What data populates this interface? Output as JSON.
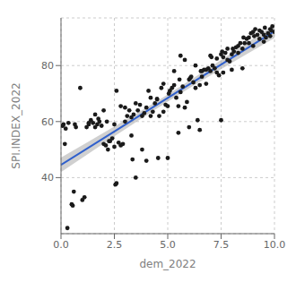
{
  "chart_data": {
    "type": "scatter",
    "xlabel": "dem_2022",
    "ylabel": "SPI.INDEX_2022",
    "color": "#1A1A1A",
    "x": [
      0.08,
      0.12,
      0.18,
      0.22,
      0.35,
      0.5,
      0.55,
      0.6,
      0.65,
      1.0,
      1.1,
      1.2,
      1.3,
      1.5,
      1.6,
      1.7,
      1.8,
      1.9,
      2.0,
      2.1,
      2.15,
      2.2,
      2.3,
      2.4,
      2.5,
      2.55,
      2.6,
      2.7,
      2.8,
      2.9,
      3.0,
      3.1,
      3.2,
      3.3,
      3.35,
      3.4,
      3.5,
      3.6,
      3.7,
      3.8,
      3.9,
      4.0,
      4.1,
      4.2,
      4.3,
      4.4,
      4.5,
      4.55,
      4.6,
      4.7,
      4.8,
      4.9,
      5.0,
      5.05,
      5.1,
      5.2,
      5.3,
      5.4,
      5.5,
      5.55,
      5.6,
      5.7,
      5.8,
      5.9,
      6.0,
      6.05,
      6.1,
      6.2,
      6.3,
      6.4,
      6.5,
      6.55,
      6.6,
      6.7,
      6.8,
      6.9,
      7.0,
      7.05,
      7.1,
      7.2,
      7.3,
      7.4,
      7.5,
      7.55,
      7.6,
      7.7,
      7.8,
      7.9,
      8.0,
      8.05,
      8.1,
      8.2,
      8.3,
      8.4,
      8.5,
      8.55,
      8.6,
      8.7,
      8.8,
      8.9,
      9.0,
      9.05,
      9.1,
      9.2,
      9.3,
      9.4,
      9.5,
      9.55,
      9.6,
      9.7,
      9.8,
      9.85,
      9.9,
      10.0,
      1.4,
      1.75,
      2.25,
      2.5,
      3.0,
      3.5,
      4.0,
      4.5,
      5.0,
      5.5,
      6.0,
      6.5,
      7.0,
      7.5,
      8.0,
      8.5,
      9.0,
      9.5,
      0.9,
      1.3,
      2.0,
      2.8,
      3.3,
      3.8,
      4.2,
      4.8,
      5.3,
      5.8,
      6.3,
      6.8,
      7.3,
      7.8,
      8.3,
      8.8,
      9.3,
      9.8,
      0.3,
      0.7,
      1.6,
      2.6,
      5.6,
      6.6,
      7.6
    ],
    "values": [
      58.5,
      59.0,
      52.0,
      57.5,
      59.5,
      30.5,
      30.0,
      35.0,
      59.0,
      32.0,
      33.0,
      58.0,
      59.5,
      59.5,
      58.0,
      59.0,
      60.0,
      58.5,
      52.0,
      51.5,
      60.0,
      50.0,
      53.0,
      54.0,
      59.0,
      37.5,
      38.0,
      52.5,
      51.5,
      52.0,
      60.0,
      62.0,
      64.0,
      61.5,
      46.5,
      62.5,
      40.0,
      64.0,
      66.0,
      62.0,
      63.0,
      65.0,
      71.0,
      62.0,
      63.5,
      66.5,
      68.0,
      47.0,
      62.0,
      72.0,
      63.5,
      66.0,
      47.0,
      70.0,
      71.0,
      72.0,
      73.0,
      68.5,
      65.5,
      75.0,
      70.5,
      72.5,
      65.0,
      67.0,
      75.0,
      75.5,
      76.0,
      74.0,
      72.0,
      60.5,
      57.0,
      78.0,
      76.0,
      78.5,
      73.5,
      79.0,
      78.0,
      83.0,
      80.0,
      79.0,
      77.5,
      76.5,
      60.5,
      85.0,
      83.0,
      84.5,
      82.0,
      81.5,
      84.0,
      86.0,
      85.0,
      86.5,
      87.0,
      88.0,
      86.0,
      90.0,
      88.0,
      89.5,
      90.0,
      91.5,
      92.0,
      90.5,
      93.0,
      91.0,
      92.5,
      92.0,
      91.0,
      93.5,
      90.0,
      91.5,
      93.0,
      92.5,
      94.0,
      92.0,
      60.5,
      61.0,
      53.0,
      51.0,
      65.0,
      66.5,
      46.0,
      68.0,
      65.5,
      56.0,
      58.0,
      73.0,
      83.5,
      84.0,
      78.5,
      79.0,
      87.0,
      88.5,
      72.0,
      59.0,
      64.0,
      65.5,
      55.0,
      50.0,
      68.5,
      73.5,
      78.0,
      82.0,
      80.0,
      78.5,
      82.5,
      86.0,
      84.5,
      88.0,
      89.5,
      90.5,
      22.0,
      58.0,
      62.5,
      71.0,
      83.5,
      78.0,
      77.5
    ],
    "fit": {
      "type": "line",
      "color": "#3060CC",
      "x": [
        0.0,
        2.5,
        5.0,
        7.5,
        10.0
      ],
      "values": [
        44.5591,
        56.4889,
        68.4188,
        80.3487,
        92.2785
      ]
    },
    "band": {
      "color": "#AAAAAA",
      "x": [
        0.0,
        2.5,
        5.0,
        7.5,
        10.0
      ],
      "lower": [
        41.9266,
        54.7494,
        67.1574,
        78.7282,
        89.8026
      ],
      "upper": [
        47.1916,
        58.2285,
        69.6802,
        81.9691,
        94.7544
      ]
    },
    "xlim": [
      0.0,
      10.0
    ],
    "ylim": [
      20.0,
      97.0
    ],
    "xticks": [
      {
        "value": 0.0,
        "label": "0.0"
      },
      2.5,
      {
        "value": 5.0,
        "label": "5.0"
      },
      7.5,
      {
        "value": 10.0,
        "label": "10.0"
      }
    ],
    "yticks": [
      40,
      60,
      80
    ],
    "grid": true
  }
}
